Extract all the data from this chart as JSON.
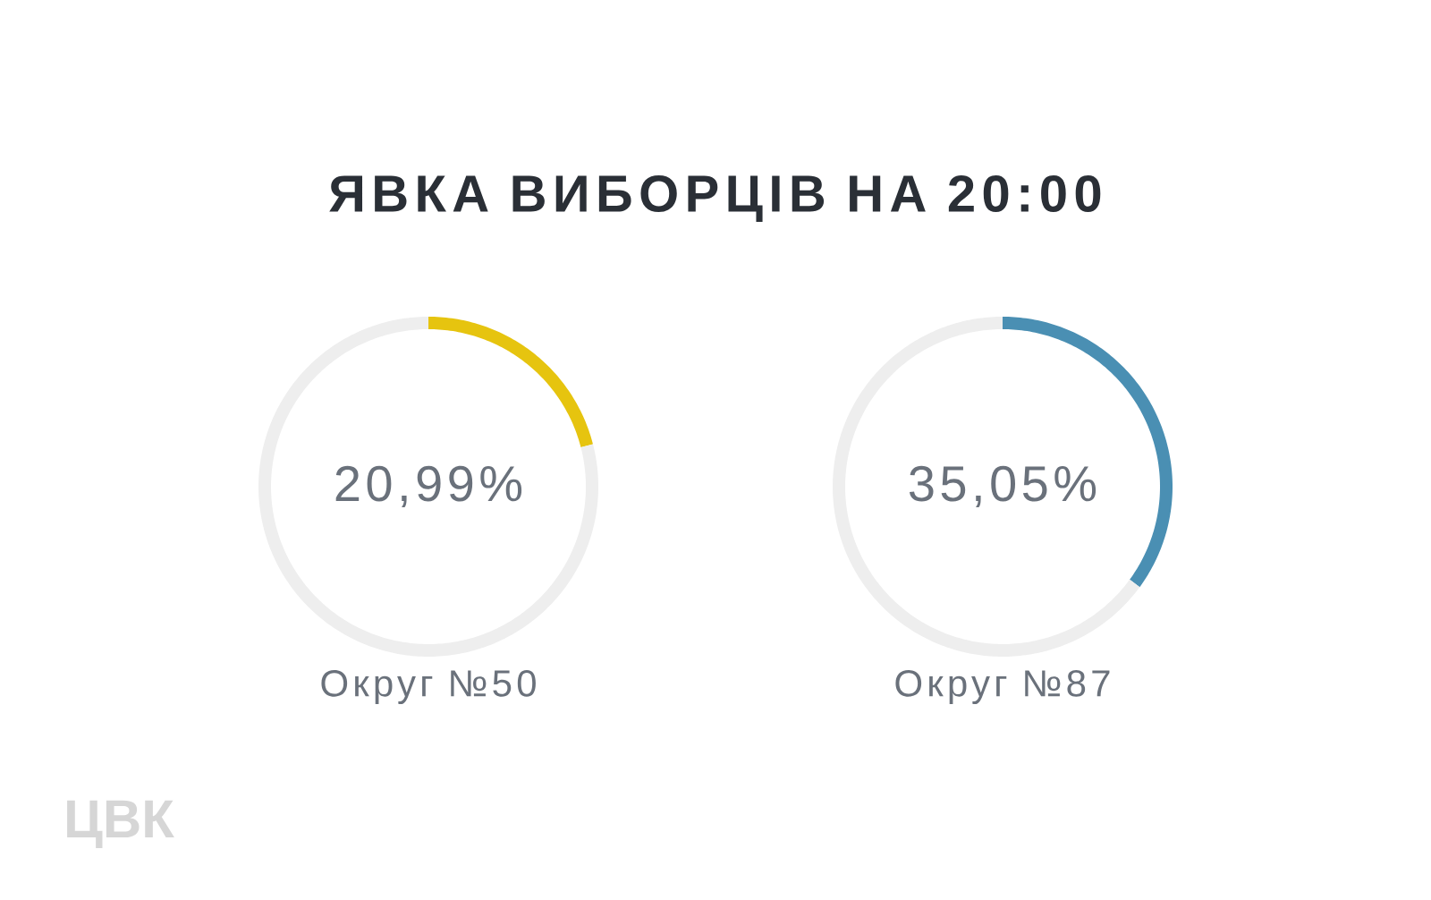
{
  "chart_data": [
    {
      "type": "donut",
      "title": "ЯВКА ВИБОРЦІВ НА 20:00",
      "xlabel": "Округ №50",
      "categories": [
        null,
        null
      ],
      "values": [
        20.99,
        79.01
      ],
      "colors": [
        "#e6c40f",
        "#eeeeee"
      ],
      "value_labels": [
        "20,99%",
        null
      ],
      "annotations": [
        "ЦВК"
      ]
    },
    {
      "type": "donut",
      "xlabel": "Округ №87",
      "categories": [
        null,
        null
      ],
      "values": [
        35.05,
        64.95
      ],
      "colors": [
        "#4a8fb3",
        "#eeeeee"
      ],
      "value_labels": [
        "35,05%",
        null
      ]
    }
  ]
}
